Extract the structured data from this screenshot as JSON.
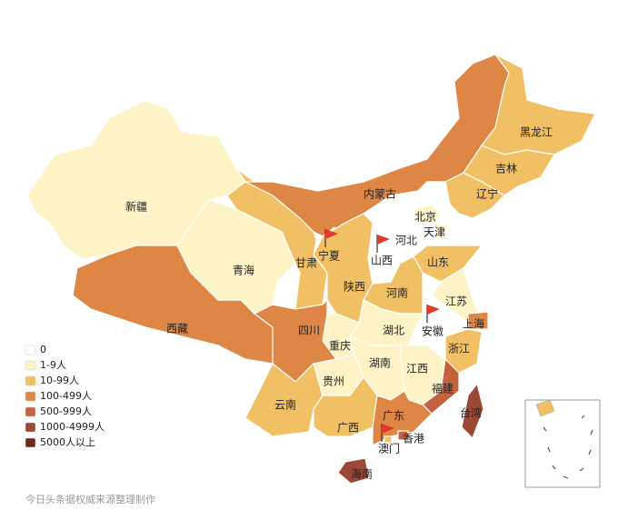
{
  "legend": [
    {
      "label": "0",
      "color": "#ffffff"
    },
    {
      "label": "1-9人",
      "color": "#fdf3c6"
    },
    {
      "label": "10-99人",
      "color": "#f2c064"
    },
    {
      "label": "100-499人",
      "color": "#dd8645"
    },
    {
      "label": "500-999人",
      "color": "#c4623d"
    },
    {
      "label": "1000-4999人",
      "color": "#9c4837"
    },
    {
      "label": "5000人以上",
      "color": "#6a2a1e"
    }
  ],
  "regions": [
    {
      "name": "新疆",
      "color": "#fdf3c6"
    },
    {
      "name": "西藏",
      "color": "#dd8645"
    },
    {
      "name": "青海",
      "color": "#fdf3c6"
    },
    {
      "name": "甘肃",
      "color": "#f2c064"
    },
    {
      "name": "内蒙古",
      "color": "#dd8645"
    },
    {
      "name": "黑龙江",
      "color": "#f2c064"
    },
    {
      "name": "吉林",
      "color": "#f2c064"
    },
    {
      "name": "辽宁",
      "color": "#f2c064"
    },
    {
      "name": "北京",
      "color": "#fdf3c6"
    },
    {
      "name": "天津",
      "color": "#fdf3c6"
    },
    {
      "name": "河北",
      "color": "#ffffff"
    },
    {
      "name": "山西",
      "color": "#ffffff"
    },
    {
      "name": "宁夏",
      "color": "#ffffff"
    },
    {
      "name": "陕西",
      "color": "#f2c064"
    },
    {
      "name": "山东",
      "color": "#f2c064"
    },
    {
      "name": "河南",
      "color": "#f2c064"
    },
    {
      "name": "江苏",
      "color": "#fdf3c6"
    },
    {
      "name": "安徽",
      "color": "#ffffff"
    },
    {
      "name": "上海",
      "color": "#dd8645"
    },
    {
      "name": "浙江",
      "color": "#f2c064"
    },
    {
      "name": "湖北",
      "color": "#fdf3c6"
    },
    {
      "name": "重庆",
      "color": "#fdf3c6"
    },
    {
      "name": "四川",
      "color": "#dd8645"
    },
    {
      "name": "贵州",
      "color": "#fdf3c6"
    },
    {
      "name": "湖南",
      "color": "#fdf3c6"
    },
    {
      "name": "江西",
      "color": "#fdf3c6"
    },
    {
      "name": "福建",
      "color": "#c4623d"
    },
    {
      "name": "云南",
      "color": "#f2c064"
    },
    {
      "name": "广西",
      "color": "#f2c064"
    },
    {
      "name": "广东",
      "color": "#dd8645"
    },
    {
      "name": "海南",
      "color": "#9c4837"
    },
    {
      "name": "台湾",
      "color": "#9c4837"
    },
    {
      "name": "香港",
      "color": "#c4623d"
    },
    {
      "name": "澳门",
      "color": "#f2c064"
    }
  ],
  "source": "今日头条据权威来源整理制作"
}
